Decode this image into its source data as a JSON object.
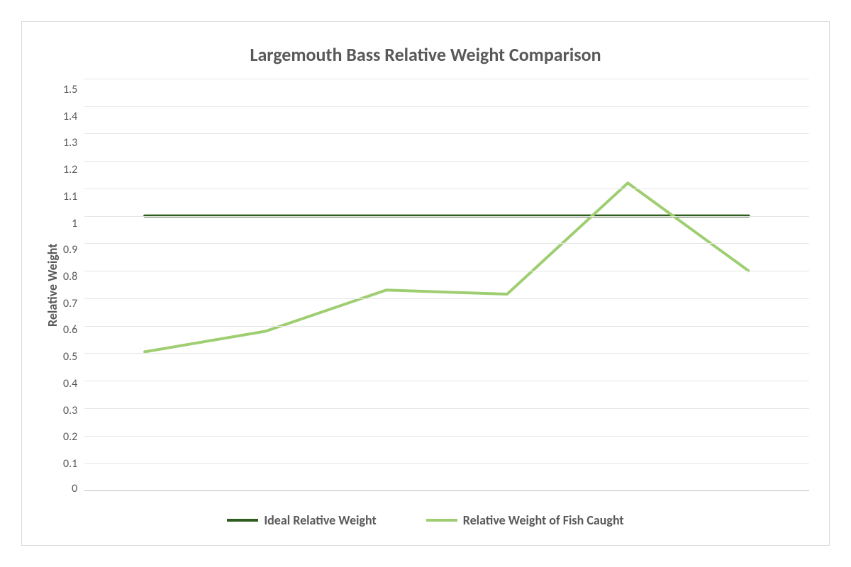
{
  "chart": {
    "type": "line",
    "title": "Largemouth Bass Relative Weight Comparison",
    "title_fontsize": 26,
    "title_color": "#595959",
    "ylabel": "Relative Weight",
    "ylabel_fontsize": 18,
    "ylabel_color": "#595959",
    "ylim": [
      0,
      1.5
    ],
    "ytick_step": 0.1,
    "ytick_labels": [
      "1.5",
      "1.4",
      "1.3",
      "1.2",
      "1.1",
      "1",
      "0.9",
      "0.8",
      "0.7",
      "0.6",
      "0.5",
      "0.4",
      "0.3",
      "0.2",
      "0.1",
      "0"
    ],
    "ytick_fontsize": 16,
    "ytick_color": "#595959",
    "grid_color": "#e6e6e6",
    "axis_line_color": "#bfbfbf",
    "background_color": "#ffffff",
    "border_color": "#d9d9d9",
    "x_categories_count": 6,
    "series": [
      {
        "name": "Ideal Relative Weight",
        "color": "#2e5c1e",
        "line_width": 4,
        "values": [
          1.0,
          1.0,
          1.0,
          1.0,
          1.0,
          1.0
        ]
      },
      {
        "name": "Relative Weight of Fish Caught",
        "color": "#9fce72",
        "line_width": 4,
        "values": [
          0.505,
          0.58,
          0.73,
          0.715,
          1.12,
          0.8
        ]
      }
    ],
    "legend": {
      "position": "bottom",
      "fontsize": 18,
      "color": "#595959"
    }
  }
}
